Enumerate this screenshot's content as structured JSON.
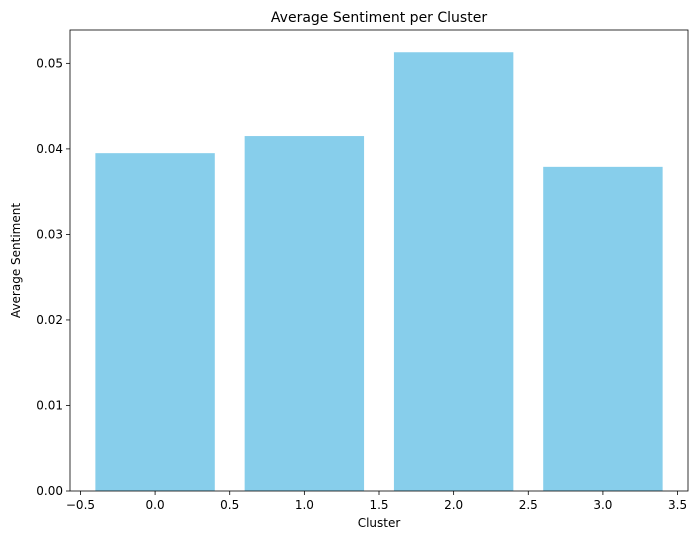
{
  "chart_data": {
    "type": "bar",
    "title": "Average Sentiment per Cluster",
    "xlabel": "Cluster",
    "ylabel": "Average Sentiment",
    "x": [
      0,
      1,
      2,
      3
    ],
    "values": [
      0.0395,
      0.0415,
      0.0513,
      0.0379
    ],
    "bar_width": 0.8,
    "xlim": [
      -0.57,
      3.57
    ],
    "ylim": [
      0,
      0.0539
    ],
    "xticks": [
      -0.5,
      0.0,
      0.5,
      1.0,
      1.5,
      2.0,
      2.5,
      3.0,
      3.5
    ],
    "xtick_labels": [
      "−0.5",
      "0.0",
      "0.5",
      "1.0",
      "1.5",
      "2.0",
      "2.5",
      "3.0",
      "3.5"
    ],
    "yticks": [
      0.0,
      0.01,
      0.02,
      0.03,
      0.04,
      0.05
    ],
    "ytick_labels": [
      "0.00",
      "0.01",
      "0.02",
      "0.03",
      "0.04",
      "0.05"
    ],
    "bar_color": "#87CEEB",
    "grid": false,
    "legend": "none"
  }
}
